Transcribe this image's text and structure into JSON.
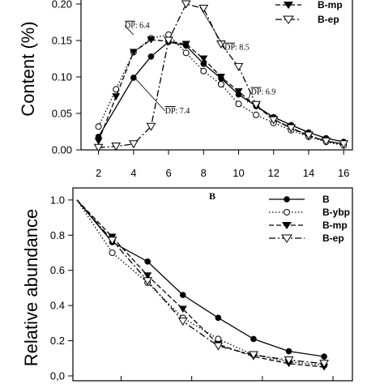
{
  "chart_data": [
    {
      "type": "line",
      "ylabel": "Content (%)",
      "ylim": [
        0,
        0.2
      ],
      "yticks": [
        "0.00",
        "0.05",
        "0.10",
        "0.15",
        "0.20"
      ],
      "xlim": [
        1,
        16.5
      ],
      "xticks": [
        "2",
        "4",
        "6",
        "8",
        "10",
        "12",
        "14",
        "16"
      ],
      "legend": {
        "placement": "top-right",
        "entries": [
          "B-mp",
          "B-ep"
        ]
      },
      "series": [
        {
          "name": "B",
          "x": [
            2,
            4,
            5,
            6,
            7,
            8,
            9,
            10,
            11,
            12,
            13,
            14,
            15,
            16
          ],
          "y": [
            0.018,
            0.099,
            0.128,
            0.148,
            0.143,
            0.118,
            0.098,
            0.076,
            0.06,
            0.045,
            0.034,
            0.024,
            0.016,
            0.011
          ],
          "style": "solid",
          "marker": "filled-circle"
        },
        {
          "name": "B-ybp",
          "x": [
            2,
            3,
            4,
            5,
            6,
            7,
            8,
            9,
            10,
            11,
            12,
            13,
            14,
            15,
            16
          ],
          "y": [
            0.032,
            0.083,
            0.134,
            0.153,
            0.158,
            0.133,
            0.108,
            0.09,
            0.063,
            0.048,
            0.037,
            0.027,
            0.018,
            0.011,
            0.006
          ],
          "style": "dotted",
          "marker": "open-circle"
        },
        {
          "name": "B-mp",
          "x": [
            2,
            3,
            4,
            5,
            6,
            7,
            8,
            9,
            10,
            11,
            12,
            13,
            14,
            15,
            16
          ],
          "y": [
            0.012,
            0.073,
            0.134,
            0.151,
            0.149,
            0.145,
            0.125,
            0.1,
            0.08,
            0.06,
            0.042,
            0.03,
            0.019,
            0.012,
            0.008
          ],
          "style": "dashed",
          "marker": "filled-triangle-down"
        },
        {
          "name": "B-ep",
          "x": [
            2,
            3,
            4,
            5,
            6,
            7,
            8,
            9,
            10,
            11,
            12,
            13,
            14,
            15,
            16
          ],
          "y": [
            0.003,
            0.005,
            0.008,
            0.032,
            0.15,
            0.2,
            0.194,
            0.145,
            0.114,
            0.062,
            0.041,
            0.03,
            0.02,
            0.012,
            0.008
          ],
          "style": "dash-dot",
          "marker": "open-triangle-down"
        }
      ],
      "annotations": [
        {
          "text": "DP",
          "suffix": ": 6.4",
          "x": 3.5,
          "y": 0.167,
          "points_to": {
            "x": 4,
            "y": 0.158
          }
        },
        {
          "text": "DP",
          "suffix": ": 8.5",
          "x": 9.2,
          "y": 0.137,
          "points_to": {
            "x": 7.8,
            "y": 0.196
          }
        },
        {
          "text": "DP",
          "suffix": ": 7.4",
          "x": 5.8,
          "y": 0.05,
          "points_to": {
            "x": 4.1,
            "y": 0.098
          }
        },
        {
          "text": "DP",
          "suffix": ": 6.9",
          "x": 10.7,
          "y": 0.076,
          "points_to": {
            "x": 10.5,
            "y": 0.065
          }
        }
      ]
    },
    {
      "type": "line",
      "panel_label": "B",
      "ylabel": "Relative abundance",
      "ylim": [
        0,
        1.05
      ],
      "yticks": [
        "0,0",
        "0.2",
        "0.4",
        "0.6",
        "0.8",
        "1.0"
      ],
      "xlim": [
        0,
        7.8
      ],
      "legend": {
        "placement": "top-right",
        "entries": [
          "B",
          "B-ybp",
          "B-mp",
          "B-ep"
        ]
      },
      "series": [
        {
          "name": "B",
          "x": [
            0,
            1,
            2,
            3,
            4,
            5,
            6,
            7
          ],
          "y": [
            1.0,
            0.76,
            0.65,
            0.46,
            0.33,
            0.21,
            0.14,
            0.11
          ],
          "style": "solid",
          "marker": "filled-circle"
        },
        {
          "name": "B-ybp",
          "x": [
            0,
            1,
            2,
            3,
            4,
            5,
            6,
            7
          ],
          "y": [
            1.0,
            0.7,
            0.53,
            0.33,
            0.21,
            0.12,
            0.08,
            0.06
          ],
          "style": "dotted",
          "marker": "open-circle"
        },
        {
          "name": "B-mp",
          "x": [
            0,
            1,
            2,
            3,
            4,
            5,
            6,
            7
          ],
          "y": [
            1.0,
            0.79,
            0.57,
            0.38,
            0.18,
            0.11,
            0.07,
            0.05
          ],
          "style": "dashed",
          "marker": "filled-triangle-down"
        },
        {
          "name": "B-ep",
          "x": [
            0,
            1,
            2,
            3,
            4,
            5,
            6,
            7
          ],
          "y": [
            1.0,
            0.77,
            0.54,
            0.31,
            0.17,
            0.12,
            0.09,
            0.07
          ],
          "style": "dash-dot",
          "marker": "open-triangle-down"
        }
      ]
    }
  ]
}
